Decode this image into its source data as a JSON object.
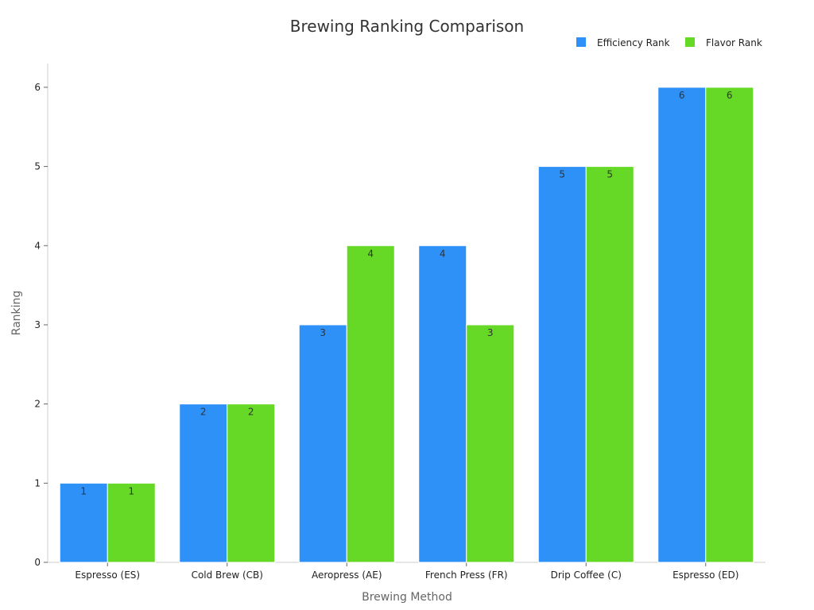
{
  "chart_data": {
    "type": "bar",
    "title": "Brewing Ranking Comparison",
    "xlabel": "Brewing Method",
    "ylabel": "Ranking",
    "categories": [
      "Espresso (ES)",
      "Cold Brew (CB)",
      "Aeropress (AE)",
      "French Press (FR)",
      "Drip Coffee (C)",
      "Espresso (ED)"
    ],
    "series": [
      {
        "name": "Efficiency Rank",
        "color": "#2d91f8",
        "values": [
          1,
          2,
          3,
          4,
          5,
          6
        ]
      },
      {
        "name": "Flavor Rank",
        "color": "#66d926",
        "values": [
          1,
          2,
          4,
          3,
          5,
          6
        ]
      }
    ],
    "ylim": [
      0,
      6.3
    ],
    "yticks": [
      0,
      1,
      2,
      3,
      4,
      5,
      6
    ],
    "grid": false,
    "legend_position": "top-right"
  }
}
